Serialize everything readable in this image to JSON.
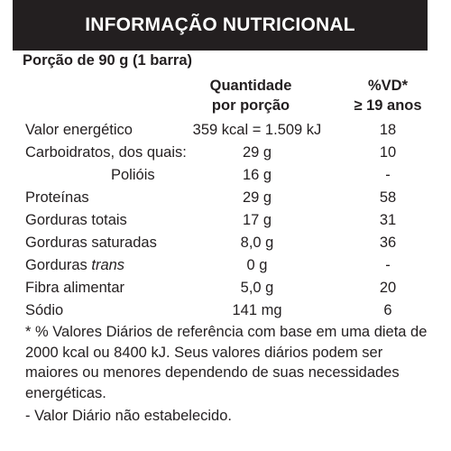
{
  "header": {
    "title": "INFORMAÇÃO NUTRICIONAL"
  },
  "serving": "Porção de 90 g (1 barra)",
  "columns": {
    "quantity_line1": "Quantidade",
    "quantity_line2": "por porção",
    "vd_line1": "%VD*",
    "vd_line2": "≥ 19 anos"
  },
  "rows": [
    {
      "name": "Valor energético",
      "qty": "359 kcal = 1.509 kJ",
      "vd": "18"
    },
    {
      "name": "Carboidratos, dos quais:",
      "qty": "29 g",
      "vd": "10"
    },
    {
      "name": "Polióis",
      "qty": "16 g",
      "vd": "-"
    },
    {
      "name": "Proteínas",
      "qty": "29 g",
      "vd": "58"
    },
    {
      "name": "Gorduras totais",
      "qty": "17 g",
      "vd": "31"
    },
    {
      "name": "Gorduras saturadas",
      "qty": "8,0 g",
      "vd": "36"
    },
    {
      "name_prefix": "Gorduras ",
      "name_italic": "trans",
      "qty": "0 g",
      "vd": "-"
    },
    {
      "name": "Fibra alimentar",
      "qty": "5,0 g",
      "vd": "20"
    },
    {
      "name": "Sódio",
      "qty": "141 mg",
      "vd": "6"
    }
  ],
  "footnote": "* % Valores Diários de referência com base em uma dieta de 2000 kcal ou 8400 kJ. Seus valores diários podem ser maiores ou menores dependendo de suas necessidades energéticas.",
  "note_not_established": "- Valor Diário não estabelecido."
}
